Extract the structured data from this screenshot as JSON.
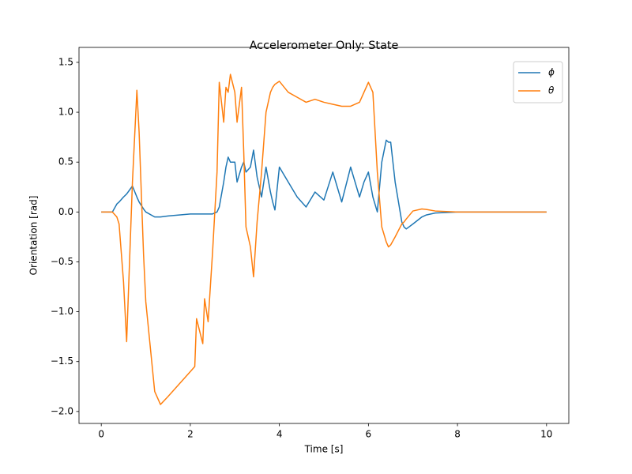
{
  "chart_data": {
    "type": "line",
    "title": "Accelerometer Only: State",
    "x_label": "Time [s]",
    "y_label": "Orientation [rad]",
    "x": [
      0,
      0.25,
      0.35,
      0.4,
      0.5,
      0.57,
      0.7,
      0.8,
      0.85,
      0.95,
      1.0,
      1.2,
      1.33,
      1.5,
      2.0,
      2.1,
      2.14,
      2.28,
      2.32,
      2.4,
      2.5,
      2.6,
      2.65,
      2.75,
      2.8,
      2.85,
      2.9,
      3.0,
      3.05,
      3.15,
      3.2,
      3.25,
      3.35,
      3.42,
      3.5,
      3.6,
      3.7,
      3.8,
      3.85,
      3.9,
      4.0,
      4.2,
      4.4,
      4.6,
      4.8,
      5.0,
      5.2,
      5.3,
      5.4,
      5.6,
      5.8,
      5.9,
      6.0,
      6.1,
      6.2,
      6.3,
      6.4,
      6.45,
      6.5,
      6.6,
      6.75,
      6.8,
      6.85,
      7.0,
      7.2,
      7.3,
      7.5,
      8.0,
      10.0
    ],
    "series": [
      {
        "name": "ϕ",
        "color": "#1f77b4",
        "values": [
          0,
          0,
          0.08,
          0.1,
          0.15,
          0.18,
          0.26,
          0.15,
          0.1,
          0.03,
          0,
          -0.05,
          -0.05,
          -0.04,
          -0.02,
          -0.02,
          -0.02,
          -0.02,
          -0.02,
          -0.02,
          -0.02,
          0.0,
          0.05,
          0.3,
          0.45,
          0.55,
          0.5,
          0.5,
          0.3,
          0.45,
          0.5,
          0.4,
          0.45,
          0.62,
          0.35,
          0.15,
          0.45,
          0.2,
          0.1,
          0.02,
          0.45,
          0.3,
          0.15,
          0.05,
          0.2,
          0.12,
          0.4,
          0.25,
          0.1,
          0.45,
          0.15,
          0.3,
          0.4,
          0.15,
          0.0,
          0.5,
          0.72,
          0.7,
          0.7,
          0.3,
          -0.1,
          -0.15,
          -0.17,
          -0.12,
          -0.05,
          -0.03,
          -0.01,
          0,
          0
        ]
      },
      {
        "name": "θ",
        "color": "#ff7f0e",
        "values": [
          0,
          0,
          -0.05,
          -0.12,
          -0.7,
          -1.3,
          0.3,
          1.22,
          0.8,
          -0.43,
          -0.9,
          -1.8,
          -1.93,
          -1.85,
          -1.6,
          -1.55,
          -1.07,
          -1.32,
          -0.87,
          -1.1,
          -0.4,
          0.4,
          1.3,
          0.9,
          1.25,
          1.2,
          1.38,
          1.2,
          0.9,
          1.25,
          0.6,
          -0.15,
          -0.35,
          -0.65,
          -0.1,
          0.4,
          1.0,
          1.2,
          1.25,
          1.28,
          1.31,
          1.2,
          1.15,
          1.1,
          1.13,
          1.1,
          1.08,
          1.07,
          1.06,
          1.06,
          1.1,
          1.2,
          1.3,
          1.2,
          0.4,
          -0.15,
          -0.3,
          -0.35,
          -0.33,
          -0.25,
          -0.12,
          -0.1,
          -0.07,
          0.01,
          0.03,
          0.025,
          0.01,
          0,
          0
        ]
      }
    ],
    "xlim": [
      -0.5,
      10.5
    ],
    "xticks": [
      0,
      2,
      4,
      6,
      8,
      10
    ],
    "ylim": [
      -2.12,
      1.65
    ],
    "yticks": [
      {
        "value": -2.0,
        "label": "−2.0"
      },
      {
        "value": -1.5,
        "label": "−1.5"
      },
      {
        "value": -1.0,
        "label": "−1.0"
      },
      {
        "value": -0.5,
        "label": "−0.5"
      },
      {
        "value": 0.0,
        "label": "0.0"
      },
      {
        "value": 0.5,
        "label": "0.5"
      },
      {
        "value": 1.0,
        "label": "1.0"
      },
      {
        "value": 1.5,
        "label": "1.5"
      }
    ],
    "legend": "upper right"
  }
}
